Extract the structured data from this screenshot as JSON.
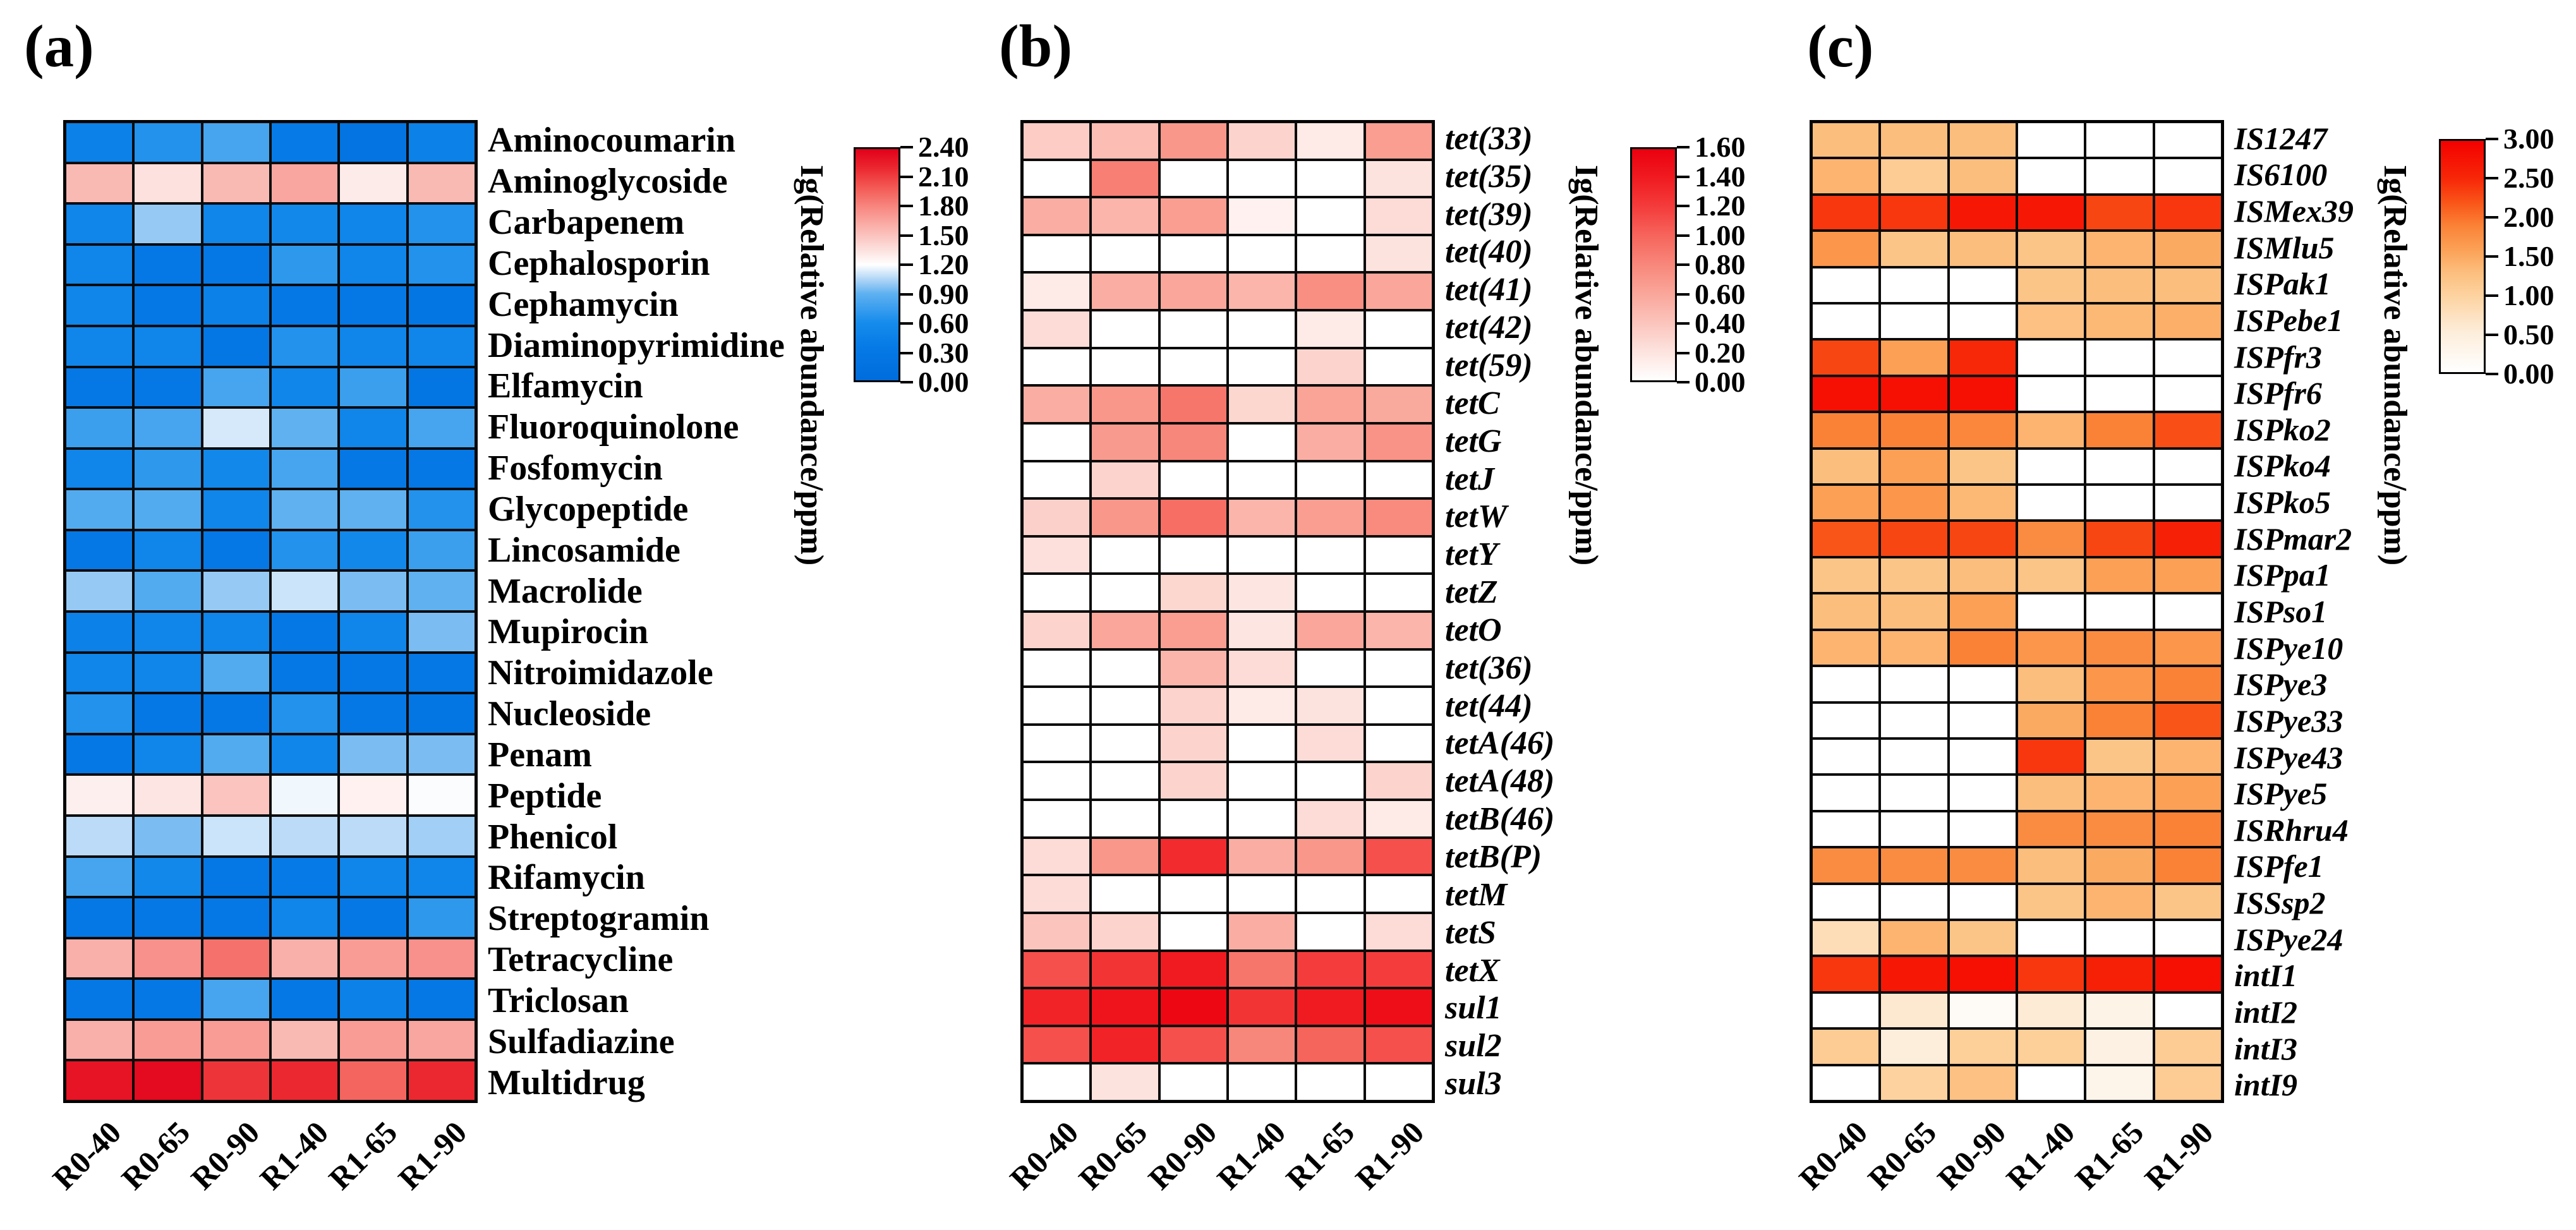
{
  "figure": {
    "background": "#ffffff",
    "grid_line_color": "#000000",
    "x_labels": [
      "R0-40",
      "R0-65",
      "R0-90",
      "R1-40",
      "R1-65",
      "R1-90"
    ]
  },
  "chart_data": [
    {
      "type": "heatmap",
      "id": "a",
      "panel_label": "(a)",
      "x_categories": [
        "R0-40",
        "R0-65",
        "R0-90",
        "R1-40",
        "R1-65",
        "R1-90"
      ],
      "y_categories": [
        "Aminocoumarin",
        "Aminoglycoside",
        "Carbapenem",
        "Cephalosporin",
        "Cephamycin",
        "Diaminopyrimidine",
        "Elfamycin",
        "Fluoroquinolone",
        "Fosfomycin",
        "Glycopeptide",
        "Lincosamide",
        "Macrolide",
        "Mupirocin",
        "Nitroimidazole",
        "Nucleoside",
        "Penam",
        "Peptide",
        "Phenicol",
        "Rifamycin",
        "Streptogramin",
        "Tetracycline",
        "Triclosan",
        "Sulfadiazine",
        "Multidrug"
      ],
      "row_label_style": "normal",
      "values": [
        [
          0.45,
          0.65,
          0.8,
          0.35,
          0.2,
          0.45
        ],
        [
          1.55,
          1.35,
          1.55,
          1.65,
          1.3,
          1.55
        ],
        [
          0.5,
          1.0,
          0.5,
          0.55,
          0.5,
          0.65
        ],
        [
          0.5,
          0.3,
          0.3,
          0.7,
          0.5,
          0.65
        ],
        [
          0.5,
          0.3,
          0.45,
          0.3,
          0.3,
          0.25
        ],
        [
          0.5,
          0.5,
          0.28,
          0.65,
          0.5,
          0.5
        ],
        [
          0.3,
          0.3,
          0.8,
          0.5,
          0.75,
          0.25
        ],
        [
          0.75,
          0.8,
          1.12,
          0.9,
          0.5,
          0.8
        ],
        [
          0.5,
          0.7,
          0.55,
          0.8,
          0.3,
          0.3
        ],
        [
          0.85,
          0.85,
          0.5,
          0.9,
          0.9,
          0.65
        ],
        [
          0.3,
          0.5,
          0.3,
          0.65,
          0.55,
          0.75
        ],
        [
          1.0,
          0.85,
          1.0,
          1.1,
          0.95,
          0.9
        ],
        [
          0.45,
          0.5,
          0.5,
          0.3,
          0.5,
          0.95
        ],
        [
          0.5,
          0.5,
          0.85,
          0.3,
          0.3,
          0.3
        ],
        [
          0.65,
          0.3,
          0.3,
          0.65,
          0.3,
          0.25
        ],
        [
          0.3,
          0.5,
          0.85,
          0.5,
          0.95,
          0.95
        ],
        [
          1.28,
          1.33,
          1.5,
          1.17,
          1.27,
          1.19
        ],
        [
          1.07,
          0.95,
          1.1,
          1.07,
          1.07,
          1.02
        ],
        [
          0.8,
          0.55,
          0.3,
          0.35,
          0.5,
          0.5
        ],
        [
          0.3,
          0.3,
          0.3,
          0.5,
          0.3,
          0.7
        ],
        [
          1.6,
          1.75,
          1.9,
          1.6,
          1.7,
          1.75
        ],
        [
          0.3,
          0.3,
          0.8,
          0.3,
          0.45,
          0.3
        ],
        [
          1.6,
          1.7,
          1.7,
          1.55,
          1.7,
          1.65
        ],
        [
          2.3,
          2.35,
          2.15,
          2.2,
          1.95,
          2.2
        ]
      ],
      "colorbar": {
        "title": "Ig(Relative abundance/ppm)",
        "ticks": [
          "2.40",
          "2.10",
          "1.80",
          "1.50",
          "1.20",
          "0.90",
          "0.60",
          "0.30",
          "0.00"
        ],
        "vmin": 0.0,
        "vmax": 2.4
      },
      "colormap_stops": [
        {
          "v": 0.0,
          "c": "#006CDC"
        },
        {
          "v": 0.35,
          "c": "#067AE6"
        },
        {
          "v": 0.6,
          "c": "#168CEC"
        },
        {
          "v": 0.9,
          "c": "#5FB1F0"
        },
        {
          "v": 1.05,
          "c": "#B2D6F7"
        },
        {
          "v": 1.2,
          "c": "#FFFFFF"
        },
        {
          "v": 1.35,
          "c": "#FCE1DE"
        },
        {
          "v": 1.6,
          "c": "#FAB0AA"
        },
        {
          "v": 1.8,
          "c": "#F78780"
        },
        {
          "v": 2.0,
          "c": "#F35A55"
        },
        {
          "v": 2.2,
          "c": "#EB2830"
        },
        {
          "v": 2.4,
          "c": "#E10019"
        }
      ]
    },
    {
      "type": "heatmap",
      "id": "b",
      "panel_label": "(b)",
      "x_categories": [
        "R0-40",
        "R0-65",
        "R0-90",
        "R1-40",
        "R1-65",
        "R1-90"
      ],
      "y_categories": [
        "tet(33)",
        "tet(35)",
        "tet(39)",
        "tet(40)",
        "tet(41)",
        "tet(42)",
        "tet(59)",
        "tetC",
        "tetG",
        "tetJ",
        "tetW",
        "tetY",
        "tetZ",
        "tetO",
        "tet(36)",
        "tet(44)",
        "tetA(46)",
        "tetA(48)",
        "tetB(46)",
        "tetB(P)",
        "tetM",
        "tetS",
        "tetX",
        "sul1",
        "sul2",
        "sul3"
      ],
      "row_label_style": "italic",
      "values": [
        [
          0.35,
          0.45,
          0.7,
          0.3,
          0.15,
          0.65
        ],
        [
          0.0,
          0.85,
          0.0,
          0.0,
          0.0,
          0.2
        ],
        [
          0.55,
          0.5,
          0.65,
          0.1,
          0.0,
          0.25
        ],
        [
          0.0,
          0.0,
          0.0,
          0.0,
          0.0,
          0.2
        ],
        [
          0.15,
          0.55,
          0.6,
          0.5,
          0.75,
          0.6
        ],
        [
          0.25,
          0.0,
          0.0,
          0.0,
          0.15,
          0.0
        ],
        [
          0.0,
          0.0,
          0.0,
          0.0,
          0.3,
          0.0
        ],
        [
          0.55,
          0.7,
          0.9,
          0.28,
          0.62,
          0.58
        ],
        [
          0.0,
          0.68,
          0.8,
          0.0,
          0.55,
          0.72
        ],
        [
          0.0,
          0.3,
          0.0,
          0.0,
          0.0,
          0.0
        ],
        [
          0.32,
          0.7,
          0.95,
          0.5,
          0.65,
          0.78
        ],
        [
          0.22,
          0.0,
          0.0,
          0.0,
          0.0,
          0.0
        ],
        [
          0.0,
          0.0,
          0.28,
          0.18,
          0.0,
          0.0
        ],
        [
          0.3,
          0.6,
          0.65,
          0.18,
          0.6,
          0.5
        ],
        [
          0.0,
          0.0,
          0.5,
          0.25,
          0.0,
          0.0
        ],
        [
          0.0,
          0.0,
          0.3,
          0.15,
          0.2,
          0.0
        ],
        [
          0.0,
          0.0,
          0.3,
          0.0,
          0.25,
          0.0
        ],
        [
          0.0,
          0.0,
          0.3,
          0.0,
          0.0,
          0.3
        ],
        [
          0.0,
          0.0,
          0.0,
          0.0,
          0.25,
          0.15
        ],
        [
          0.25,
          0.7,
          1.3,
          0.55,
          0.7,
          1.1
        ],
        [
          0.25,
          0.0,
          0.0,
          0.0,
          0.0,
          0.0
        ],
        [
          0.4,
          0.3,
          0.0,
          0.55,
          0.0,
          0.25
        ],
        [
          1.1,
          1.25,
          1.4,
          0.9,
          1.2,
          1.2
        ],
        [
          1.35,
          1.45,
          1.55,
          1.25,
          1.4,
          1.5
        ],
        [
          1.1,
          1.35,
          1.1,
          0.8,
          1.0,
          1.1
        ],
        [
          0.0,
          0.2,
          0.0,
          0.0,
          0.0,
          0.0
        ]
      ],
      "colorbar": {
        "title": "Ig(Relative abundance/ppm)",
        "ticks": [
          "1.60",
          "1.40",
          "1.20",
          "1.00",
          "0.80",
          "0.60",
          "0.40",
          "0.20",
          "0.00"
        ],
        "vmin": 0.0,
        "vmax": 1.6
      },
      "colormap_stops": [
        {
          "v": 0.0,
          "c": "#FFFFFF"
        },
        {
          "v": 0.2,
          "c": "#FDE3DE"
        },
        {
          "v": 0.4,
          "c": "#FBC4BC"
        },
        {
          "v": 0.6,
          "c": "#FAA69A"
        },
        {
          "v": 0.8,
          "c": "#F8877B"
        },
        {
          "v": 1.0,
          "c": "#F6655C"
        },
        {
          "v": 1.2,
          "c": "#F43C3C"
        },
        {
          "v": 1.4,
          "c": "#F01B20"
        },
        {
          "v": 1.6,
          "c": "#EB000F"
        }
      ]
    },
    {
      "type": "heatmap",
      "id": "c",
      "panel_label": "(c)",
      "x_categories": [
        "R0-40",
        "R0-65",
        "R0-90",
        "R1-40",
        "R1-65",
        "R1-90"
      ],
      "y_categories": [
        "IS1247",
        "IS6100",
        "ISMex39",
        "ISMlu5",
        "ISPak1",
        "ISPebe1",
        "ISPfr3",
        "ISPfr6",
        "ISPko2",
        "ISPko4",
        "ISPko5",
        "ISPmar2",
        "ISPpa1",
        "ISPso1",
        "ISPye10",
        "ISPye3",
        "ISPye33",
        "ISPye43",
        "ISPye5",
        "ISRhru4",
        "ISPfe1",
        "ISSsp2",
        "ISPye24",
        "intI1",
        "intI2",
        "intI3",
        "intI9"
      ],
      "row_label_style": "italic",
      "values": [
        [
          1.3,
          1.3,
          1.3,
          0.0,
          0.0,
          0.0
        ],
        [
          1.4,
          1.1,
          1.3,
          0.0,
          0.0,
          0.0
        ],
        [
          2.4,
          2.4,
          2.7,
          2.7,
          2.3,
          2.4
        ],
        [
          1.7,
          1.2,
          1.3,
          1.2,
          1.4,
          1.5
        ],
        [
          0.0,
          0.0,
          0.0,
          1.2,
          1.3,
          1.3
        ],
        [
          0.0,
          0.0,
          0.0,
          1.25,
          1.35,
          1.45
        ],
        [
          2.3,
          1.6,
          2.5,
          0.0,
          0.0,
          0.0
        ],
        [
          2.8,
          2.8,
          2.8,
          0.0,
          0.0,
          0.0
        ],
        [
          1.9,
          1.9,
          1.85,
          1.4,
          1.9,
          2.25
        ],
        [
          1.3,
          1.6,
          1.2,
          0.0,
          0.0,
          0.0
        ],
        [
          1.6,
          1.7,
          1.35,
          0.0,
          0.0,
          0.0
        ],
        [
          2.2,
          2.3,
          2.3,
          1.8,
          2.3,
          2.6
        ],
        [
          1.2,
          1.2,
          1.3,
          1.2,
          1.6,
          1.6
        ],
        [
          1.3,
          1.3,
          1.6,
          0.0,
          0.0,
          0.0
        ],
        [
          1.4,
          1.4,
          1.9,
          1.7,
          1.8,
          1.7
        ],
        [
          0.0,
          0.0,
          0.0,
          1.3,
          1.7,
          1.9
        ],
        [
          0.0,
          0.0,
          0.0,
          1.5,
          1.9,
          2.2
        ],
        [
          0.0,
          0.0,
          0.0,
          2.4,
          1.2,
          1.4
        ],
        [
          0.0,
          0.0,
          0.0,
          1.3,
          1.4,
          1.6
        ],
        [
          0.0,
          0.0,
          0.0,
          1.8,
          1.8,
          1.9
        ],
        [
          1.8,
          1.8,
          1.8,
          1.3,
          1.5,
          1.9
        ],
        [
          0.0,
          0.0,
          0.0,
          1.2,
          1.4,
          1.2
        ],
        [
          0.8,
          1.4,
          1.2,
          0.0,
          0.0,
          0.0
        ],
        [
          2.4,
          2.7,
          2.8,
          2.4,
          2.6,
          2.8
        ],
        [
          0.0,
          0.6,
          0.15,
          0.55,
          0.35,
          0.0
        ],
        [
          1.1,
          0.5,
          1.05,
          1.05,
          0.4,
          1.1
        ],
        [
          0.0,
          1.0,
          1.25,
          0.0,
          0.3,
          1.1
        ]
      ],
      "colorbar": {
        "title": "Ig(Relative abundance/ppm)",
        "ticks": [
          "3.00",
          "2.50",
          "2.00",
          "1.50",
          "1.00",
          "0.50",
          "0.00"
        ],
        "vmin": 0.0,
        "vmax": 3.0
      },
      "colormap_stops": [
        {
          "v": 0.0,
          "c": "#FFFFFF"
        },
        {
          "v": 0.5,
          "c": "#FDEEDC"
        },
        {
          "v": 1.0,
          "c": "#FDD29F"
        },
        {
          "v": 1.3,
          "c": "#FCBE7D"
        },
        {
          "v": 1.6,
          "c": "#FBA055"
        },
        {
          "v": 1.9,
          "c": "#FA8237"
        },
        {
          "v": 2.2,
          "c": "#F95519"
        },
        {
          "v": 2.5,
          "c": "#F72808"
        },
        {
          "v": 3.0,
          "c": "#F40000"
        }
      ]
    }
  ]
}
